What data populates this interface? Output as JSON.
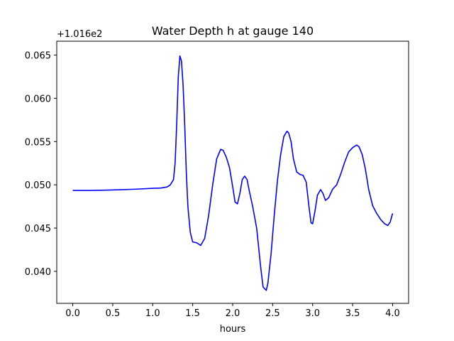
{
  "chart_data": {
    "type": "line",
    "title": "Water Depth h at gauge 140",
    "xlabel": "hours",
    "ylabel": "",
    "y_offset_text": "+1.016e2",
    "y_offset_value": 101.6,
    "xlim": [
      -0.2,
      4.2
    ],
    "ylim": [
      0.0363,
      0.0666
    ],
    "x_ticks": [
      0.0,
      0.5,
      1.0,
      1.5,
      2.0,
      2.5,
      3.0,
      3.5,
      4.0
    ],
    "x_tick_labels": [
      "0.0",
      "0.5",
      "1.0",
      "1.5",
      "2.0",
      "2.5",
      "3.0",
      "3.5",
      "4.0"
    ],
    "y_ticks": [
      0.04,
      0.045,
      0.05,
      0.055,
      0.06,
      0.065
    ],
    "y_tick_labels": [
      "0.040",
      "0.045",
      "0.050",
      "0.055",
      "0.060",
      "0.065"
    ],
    "grid": false,
    "series": [
      {
        "color": "#0000ff",
        "x": [
          0.0,
          0.2,
          0.4,
          0.6,
          0.8,
          1.0,
          1.1,
          1.18,
          1.22,
          1.26,
          1.28,
          1.3,
          1.32,
          1.34,
          1.36,
          1.38,
          1.4,
          1.42,
          1.44,
          1.47,
          1.5,
          1.55,
          1.6,
          1.65,
          1.7,
          1.75,
          1.8,
          1.85,
          1.88,
          1.92,
          1.96,
          2.0,
          2.03,
          2.06,
          2.09,
          2.12,
          2.15,
          2.18,
          2.21,
          2.25,
          2.3,
          2.35,
          2.38,
          2.42,
          2.44,
          2.48,
          2.52,
          2.56,
          2.6,
          2.64,
          2.68,
          2.7,
          2.73,
          2.76,
          2.8,
          2.84,
          2.88,
          2.92,
          2.95,
          2.98,
          3.0,
          3.03,
          3.06,
          3.1,
          3.13,
          3.16,
          3.2,
          3.25,
          3.3,
          3.35,
          3.4,
          3.45,
          3.5,
          3.55,
          3.58,
          3.62,
          3.66,
          3.7,
          3.75,
          3.8,
          3.85,
          3.9,
          3.94,
          3.97,
          4.0
        ],
        "y": [
          0.04935,
          0.04935,
          0.04938,
          0.04943,
          0.0495,
          0.0496,
          0.04963,
          0.04975,
          0.05,
          0.0506,
          0.0525,
          0.057,
          0.0625,
          0.0649,
          0.0643,
          0.0615,
          0.057,
          0.0515,
          0.0475,
          0.0445,
          0.0434,
          0.0433,
          0.043,
          0.0438,
          0.0465,
          0.05,
          0.053,
          0.0541,
          0.054,
          0.0532,
          0.052,
          0.0498,
          0.048,
          0.0478,
          0.049,
          0.0506,
          0.051,
          0.0506,
          0.0492,
          0.0475,
          0.045,
          0.0405,
          0.0382,
          0.0378,
          0.0386,
          0.042,
          0.0465,
          0.0505,
          0.0535,
          0.0556,
          0.0562,
          0.056,
          0.055,
          0.053,
          0.0515,
          0.0512,
          0.0511,
          0.0503,
          0.0478,
          0.0456,
          0.0455,
          0.047,
          0.0488,
          0.04945,
          0.049,
          0.0482,
          0.0485,
          0.0495,
          0.05,
          0.0512,
          0.0526,
          0.0538,
          0.0543,
          0.0546,
          0.0544,
          0.0535,
          0.0518,
          0.0495,
          0.0476,
          0.0467,
          0.046,
          0.0455,
          0.0453,
          0.0457,
          0.0467
        ]
      }
    ]
  }
}
